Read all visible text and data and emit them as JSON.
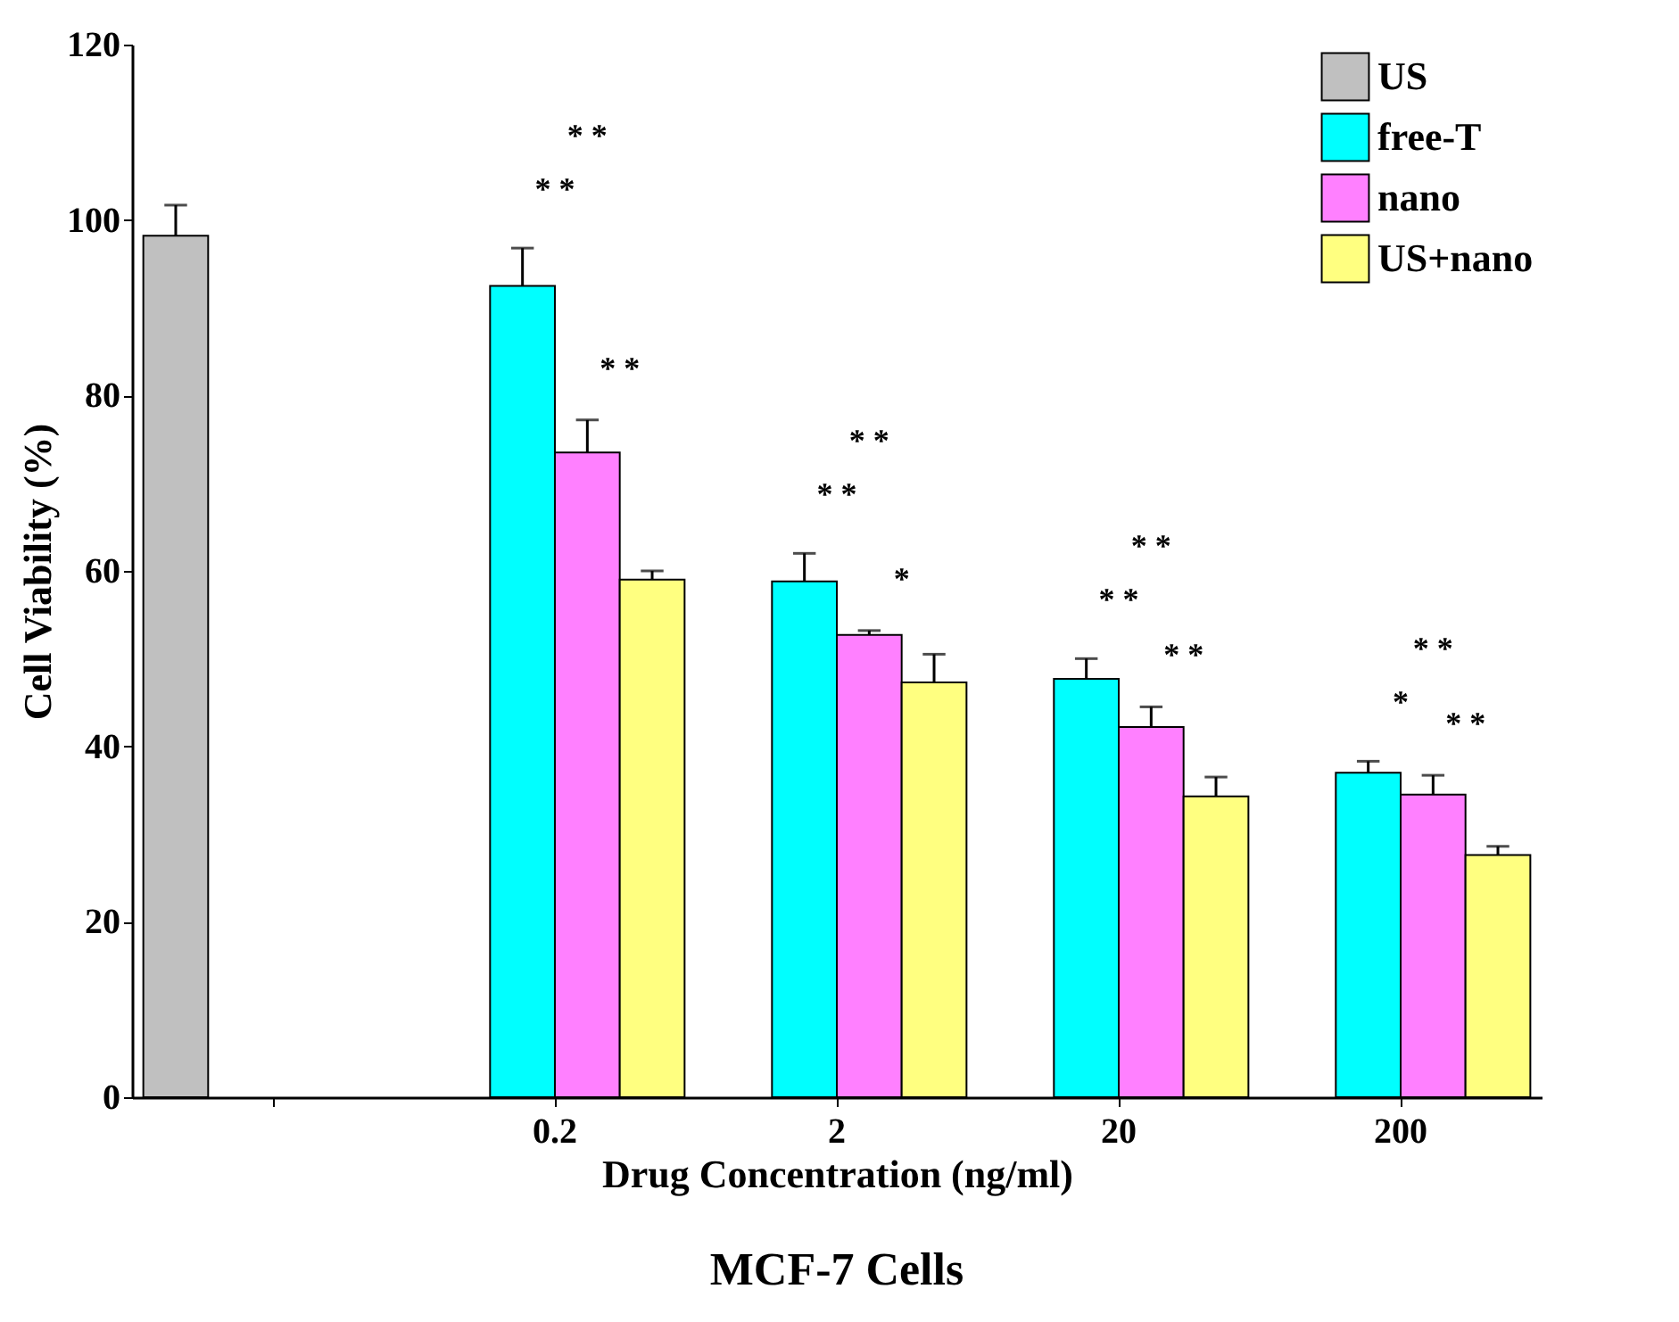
{
  "chart_data": {
    "type": "bar",
    "title": "MCF-7 Cells",
    "xlabel": "Drug Concentration (ng/ml)",
    "ylabel": "Cell Viability (%)",
    "categories": [
      null,
      "0.2",
      "2",
      "20",
      "200"
    ],
    "series": [
      {
        "name": "US",
        "color": "#c0c0c0",
        "values": [
          98.2,
          null,
          null,
          null,
          null
        ],
        "errors": [
          3.5,
          null,
          null,
          null,
          null
        ]
      },
      {
        "name": "free-T",
        "color": "#00ffff",
        "values": [
          null,
          92.5,
          58.8,
          47.7,
          37.0
        ],
        "errors": [
          null,
          4.3,
          3.2,
          2.3,
          1.3
        ]
      },
      {
        "name": "nano",
        "color": "#ff80ff",
        "values": [
          null,
          73.5,
          52.7,
          42.2,
          34.5
        ],
        "errors": [
          null,
          3.7,
          0.5,
          2.3,
          2.2
        ]
      },
      {
        "name": "US+nano",
        "color": "#ffff80",
        "values": [
          null,
          59.0,
          47.3,
          34.3,
          27.6
        ],
        "errors": [
          null,
          1.0,
          3.2,
          2.2,
          1.0
        ]
      }
    ],
    "ylim": [
      0,
      120
    ],
    "yticks": [
      0,
      20,
      40,
      60,
      80,
      100,
      120
    ],
    "legend": "top right",
    "grid": false,
    "annotations": [
      "* *",
      "* *",
      "* *",
      "* *",
      "* *",
      "*",
      "* *",
      "* *",
      "* *",
      "* *",
      "*",
      "* *"
    ]
  }
}
